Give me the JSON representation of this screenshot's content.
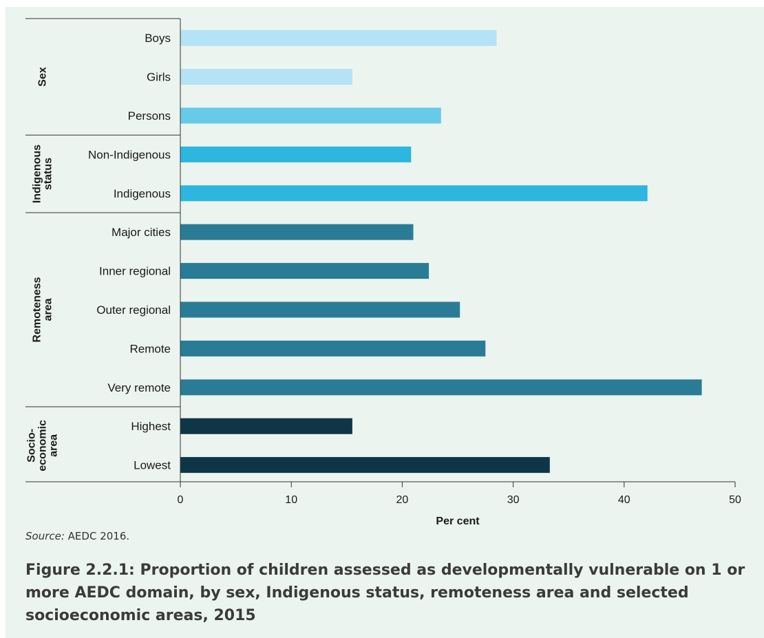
{
  "chart_data": {
    "type": "bar",
    "orientation": "horizontal",
    "xlabel": "Per cent",
    "xlim": [
      0,
      50
    ],
    "xticks": [
      0,
      10,
      20,
      30,
      40,
      50
    ],
    "groups": [
      {
        "name": "Sex",
        "categories": [
          "Boys",
          "Girls",
          "Persons"
        ],
        "values": [
          28.5,
          15.5,
          23.5
        ],
        "colors": [
          "#b3e3f4",
          "#b3e3f4",
          "#66cae8"
        ]
      },
      {
        "name": "Indigenous status",
        "categories": [
          "Non-Indigenous",
          "Indigenous"
        ],
        "values": [
          20.8,
          42.1
        ],
        "colors": [
          "#2cb6e0",
          "#2cb6e0"
        ]
      },
      {
        "name": "Remoteness area",
        "categories": [
          "Major cities",
          "Inner regional",
          "Outer regional",
          "Remote",
          "Very remote"
        ],
        "values": [
          21.0,
          22.4,
          25.2,
          27.5,
          47.0
        ],
        "colors": [
          "#2a7c96",
          "#2a7c96",
          "#2a7c96",
          "#2a7c96",
          "#2a7c96"
        ]
      },
      {
        "name": "Socio-economic area",
        "categories": [
          "Highest",
          "Lowest"
        ],
        "values": [
          15.5,
          33.3
        ],
        "colors": [
          "#0e3647",
          "#0e3647"
        ]
      }
    ]
  },
  "group_label_lines": [
    [
      "Sex"
    ],
    [
      "Indigenous",
      "status"
    ],
    [
      "Remoteness",
      "area"
    ],
    [
      "Socio-",
      "economic",
      "area"
    ]
  ],
  "source": {
    "label": "Source:",
    "text": " AEDC 2016."
  },
  "caption": "Figure 2.2.1: Proportion of children assessed as developmentally vulnerable on 1 or more AEDC domain, by sex, Indigenous status, remoteness area and selected socioeconomic areas, 2015"
}
